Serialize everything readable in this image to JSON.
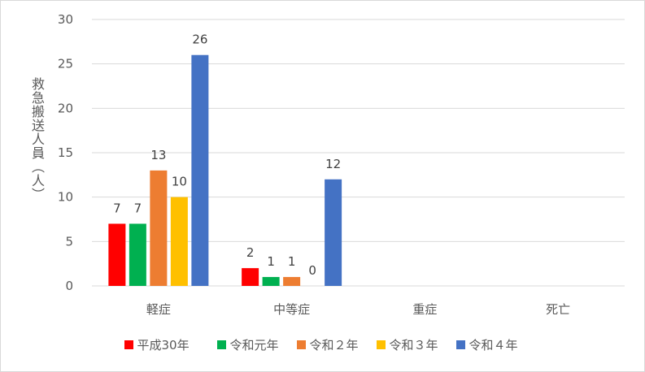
{
  "chart_data": {
    "type": "bar",
    "categories": [
      "軽症",
      "中等症",
      "重症",
      "死亡"
    ],
    "series": [
      {
        "name": "平成30年",
        "values": [
          7,
          2,
          null,
          null
        ],
        "color": "#ff0000"
      },
      {
        "name": "令和元年",
        "values": [
          7,
          1,
          null,
          null
        ],
        "color": "#00b050"
      },
      {
        "name": "令和２年",
        "values": [
          13,
          1,
          null,
          null
        ],
        "color": "#ed7d31"
      },
      {
        "name": "令和３年",
        "values": [
          10,
          0,
          null,
          null
        ],
        "color": "#ffc000"
      },
      {
        "name": "令和４年",
        "values": [
          26,
          12,
          null,
          null
        ],
        "color": "#4472c4"
      }
    ],
    "title": "",
    "xlabel": "",
    "ylabel": "救急搬送人員（人）",
    "ylim": [
      0,
      30
    ],
    "yticks": [
      0,
      5,
      10,
      15,
      20,
      25,
      30
    ],
    "grid": true,
    "legend_position": "bottom"
  }
}
